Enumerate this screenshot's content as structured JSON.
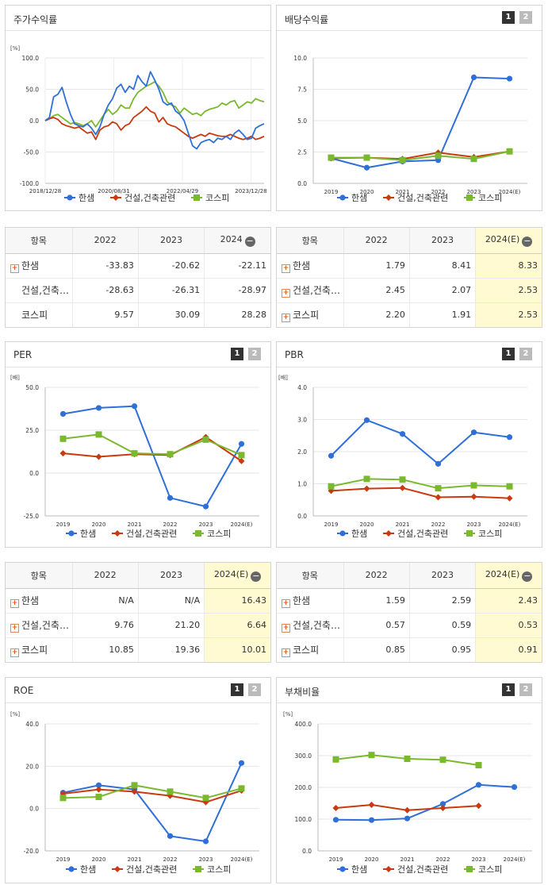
{
  "tabs": {
    "p1": "1",
    "p2": "2"
  },
  "table_names": {
    "r1": "한샘",
    "r2": "건설,건축…",
    "r3": "코스피"
  },
  "series_colors": [
    "#2f6fd8",
    "#c83a10",
    "#7ab82e"
  ],
  "panels": {
    "stock": {
      "title": "주가수익률",
      "chart": {
        "type": "line",
        "unit": "[%]",
        "ylim": [
          -100,
          100
        ],
        "yticks": [
          "100.0",
          "50.0",
          "0.0",
          "-50.0",
          "-100.0"
        ],
        "xticks": [
          "2018/12/28",
          "2020/08/31",
          "2022/04/29",
          "2023/12/28"
        ],
        "series": [
          {
            "name": "한샘",
            "values": [
              0,
              5,
              38,
              42,
              53,
              30,
              10,
              -5,
              -8,
              -10,
              -5,
              -12,
              -22,
              -10,
              10,
              25,
              35,
              52,
              58,
              45,
              55,
              50,
              72,
              62,
              55,
              78,
              65,
              50,
              30,
              25,
              28,
              15,
              10,
              0,
              -20,
              -40,
              -45,
              -35,
              -32,
              -30,
              -35,
              -28,
              -30,
              -25,
              -30,
              -20,
              -15,
              -22,
              -30,
              -28,
              -12,
              -8,
              -5
            ]
          },
          {
            "name": "건설,건축관련",
            "values": [
              0,
              3,
              5,
              2,
              -5,
              -8,
              -10,
              -12,
              -10,
              -15,
              -20,
              -18,
              -30,
              -15,
              -10,
              -8,
              -2,
              -5,
              -15,
              -8,
              -5,
              5,
              10,
              15,
              22,
              15,
              12,
              -2,
              5,
              -5,
              -8,
              -10,
              -15,
              -20,
              -25,
              -28,
              -25,
              -22,
              -25,
              -20,
              -22,
              -24,
              -25,
              -25,
              -22,
              -25,
              -28,
              -30,
              -28,
              -25,
              -30,
              -28,
              -25
            ]
          },
          {
            "name": "코스피",
            "values": [
              0,
              3,
              8,
              10,
              5,
              0,
              -5,
              -3,
              -5,
              -8,
              -5,
              0,
              -10,
              0,
              10,
              18,
              10,
              15,
              25,
              20,
              20,
              35,
              45,
              50,
              55,
              58,
              62,
              55,
              45,
              30,
              25,
              22,
              12,
              20,
              15,
              10,
              12,
              8,
              15,
              18,
              20,
              22,
              28,
              25,
              30,
              32,
              20,
              25,
              30,
              28,
              35,
              32,
              30
            ]
          }
        ]
      }
    },
    "dividend": {
      "title": "배당수익률",
      "chart": {
        "type": "line",
        "ylim": [
          0,
          10
        ],
        "yticks": [
          "10.0",
          "7.5",
          "5.0",
          "2.5",
          "0.0"
        ],
        "categories": [
          "2019",
          "2020",
          "2021",
          "2022",
          "2023",
          "2024(E)"
        ],
        "series": [
          {
            "name": "한샘",
            "values": [
              2.0,
              1.25,
              1.75,
              1.85,
              8.45,
              8.35
            ]
          },
          {
            "name": "건설,건축관련",
            "values": [
              2.0,
              2.05,
              1.95,
              2.45,
              2.1,
              2.55
            ]
          },
          {
            "name": "코스피",
            "values": [
              2.05,
              2.05,
              1.85,
              2.2,
              1.95,
              2.55
            ]
          }
        ]
      },
      "table": {
        "col0": "항목",
        "cols": [
          "2022",
          "2023",
          "2024(E)"
        ],
        "rows": [
          [
            "한샘",
            "1.79",
            "8.41",
            "8.33"
          ],
          [
            "건설,건축…",
            "2.45",
            "2.07",
            "2.53"
          ],
          [
            "코스피",
            "2.20",
            "1.91",
            "2.53"
          ]
        ]
      }
    },
    "stock_table": {
      "col0": "항목",
      "cols": [
        "2022",
        "2023",
        "2024"
      ],
      "rows": [
        [
          "한샘",
          "-33.83",
          "-20.62",
          "-22.11"
        ],
        [
          "건설,건축…",
          "-28.63",
          "-26.31",
          "-28.97"
        ],
        [
          "코스피",
          "9.57",
          "30.09",
          "28.28"
        ]
      ]
    },
    "per": {
      "title": "PER",
      "chart": {
        "type": "line",
        "unit": "[배]",
        "ylim": [
          -25,
          50
        ],
        "yticks": [
          "50.0",
          "25.0",
          "0.0",
          "-25.0"
        ],
        "categories": [
          "2019",
          "2020",
          "2021",
          "2022",
          "2023",
          "2024(E)"
        ],
        "series": [
          {
            "name": "한샘",
            "values": [
              34.5,
              38,
              39,
              -14.5,
              -19.5,
              17
            ]
          },
          {
            "name": "건설,건축관련",
            "values": [
              11.5,
              9.5,
              11,
              10.5,
              21,
              7
            ]
          },
          {
            "name": "코스피",
            "values": [
              20,
              22.5,
              11.5,
              11,
              19.5,
              10.5
            ]
          }
        ]
      },
      "table": {
        "col0": "항목",
        "cols": [
          "2022",
          "2023",
          "2024(E)"
        ],
        "rows": [
          [
            "한샘",
            "N/A",
            "N/A",
            "16.43"
          ],
          [
            "건설,건축…",
            "9.76",
            "21.20",
            "6.64"
          ],
          [
            "코스피",
            "10.85",
            "19.36",
            "10.01"
          ]
        ]
      }
    },
    "pbr": {
      "title": "PBR",
      "chart": {
        "type": "line",
        "unit": "[배]",
        "ylim": [
          0,
          4
        ],
        "yticks": [
          "4.0",
          "3.0",
          "2.0",
          "1.0",
          "0.0"
        ],
        "categories": [
          "2019",
          "2020",
          "2021",
          "2022",
          "2023",
          "2024(E)"
        ],
        "series": [
          {
            "name": "한샘",
            "values": [
              1.87,
              2.98,
              2.55,
              1.62,
              2.6,
              2.45
            ]
          },
          {
            "name": "건설,건축관련",
            "values": [
              0.78,
              0.85,
              0.87,
              0.58,
              0.6,
              0.55
            ]
          },
          {
            "name": "코스피",
            "values": [
              0.92,
              1.15,
              1.13,
              0.86,
              0.95,
              0.92
            ]
          }
        ]
      },
      "table": {
        "col0": "항목",
        "cols": [
          "2022",
          "2023",
          "2024(E)"
        ],
        "rows": [
          [
            "한샘",
            "1.59",
            "2.59",
            "2.43"
          ],
          [
            "건설,건축…",
            "0.57",
            "0.59",
            "0.53"
          ],
          [
            "코스피",
            "0.85",
            "0.95",
            "0.91"
          ]
        ]
      }
    },
    "roe": {
      "title": "ROE",
      "chart": {
        "type": "line",
        "unit": "[%]",
        "ylim": [
          -20,
          40
        ],
        "yticks": [
          "40.0",
          "20.0",
          "0.0",
          "-20.0"
        ],
        "categories": [
          "2019",
          "2020",
          "2021",
          "2022",
          "2023",
          "2024(E)"
        ],
        "series": [
          {
            "name": "한샘",
            "values": [
              7.5,
              11,
              9,
              -13,
              -15.5,
              21.5
            ]
          },
          {
            "name": "건설,건축관련",
            "values": [
              7,
              9,
              8,
              6,
              3,
              8.5
            ]
          },
          {
            "name": "코스피",
            "values": [
              5,
              5.5,
              11,
              8,
              5,
              9.5
            ]
          }
        ]
      }
    },
    "debt": {
      "title": "부채비율",
      "chart": {
        "type": "line",
        "unit": "[%]",
        "ylim": [
          0,
          400
        ],
        "yticks": [
          "400.0",
          "300.0",
          "200.0",
          "100.0",
          "0.0"
        ],
        "categories": [
          "2019",
          "2020",
          "2021",
          "2022",
          "2023",
          "2024(E)"
        ],
        "series": [
          {
            "name": "한샘",
            "values": [
              98,
              97,
              102,
              148,
              208,
              201
            ]
          },
          {
            "name": "건설,건축관련",
            "values": [
              135,
              145,
              128,
              135,
              142,
              null
            ]
          },
          {
            "name": "코스피",
            "values": [
              288,
              302,
              290,
              287,
              270,
              null
            ]
          }
        ]
      }
    }
  }
}
